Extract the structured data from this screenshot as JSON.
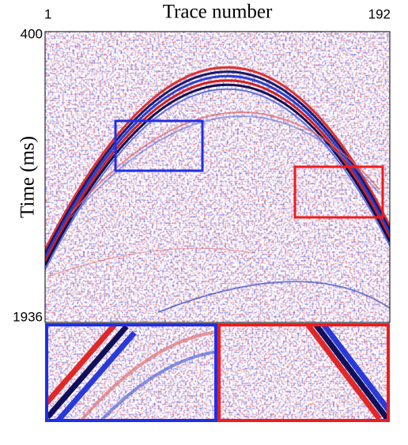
{
  "chart_data": {
    "type": "seismic",
    "xlabel": "Trace number",
    "ylabel": "Time (ms)",
    "xlim": [
      1,
      192
    ],
    "xticks": [
      1,
      192
    ],
    "ylim": [
      1936,
      400
    ],
    "yticks": [
      400,
      1936
    ]
  }
}
